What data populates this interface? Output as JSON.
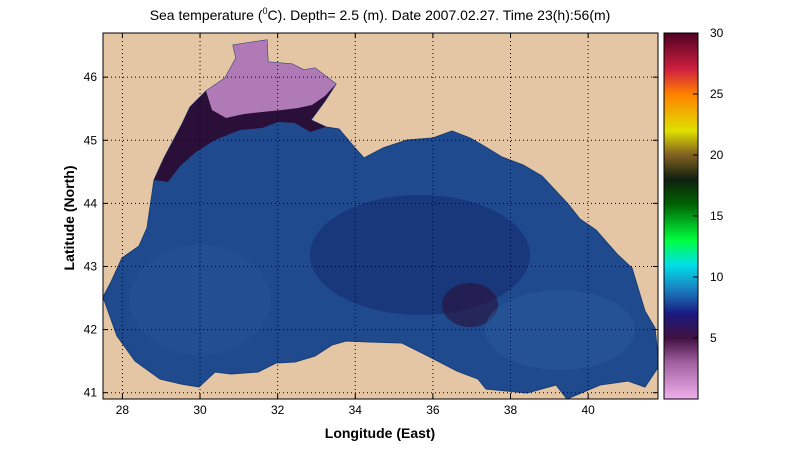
{
  "title": {
    "prefix": "Sea temperature (",
    "sup": "0",
    "suffix": "C). Depth=  2.5 (m). Date 2007.02.27. Time 23(h):56(m)"
  },
  "x_axis": {
    "label": "Longitude (East)",
    "range": [
      27.5,
      41.8
    ],
    "ticks": [
      28,
      30,
      32,
      34,
      36,
      38,
      40
    ]
  },
  "y_axis": {
    "label": "Latitude (North)",
    "range": [
      40.9,
      46.7
    ],
    "ticks": [
      41,
      42,
      43,
      44,
      45,
      46
    ]
  },
  "colorbar": {
    "range": [
      0,
      30
    ],
    "ticks": [
      5,
      10,
      15,
      20,
      25,
      30
    ],
    "stops": [
      {
        "v": 0,
        "c": "#f0b0ec"
      },
      {
        "v": 3,
        "c": "#a060a0"
      },
      {
        "v": 5,
        "c": "#401040"
      },
      {
        "v": 7,
        "c": "#1a1a80"
      },
      {
        "v": 9,
        "c": "#1a80c0"
      },
      {
        "v": 11,
        "c": "#00e0e8"
      },
      {
        "v": 13,
        "c": "#00ff40"
      },
      {
        "v": 16,
        "c": "#006000"
      },
      {
        "v": 18,
        "c": "#102010"
      },
      {
        "v": 20,
        "c": "#806020"
      },
      {
        "v": 22,
        "c": "#e0e000"
      },
      {
        "v": 25,
        "c": "#ff8000"
      },
      {
        "v": 27,
        "c": "#d02040"
      },
      {
        "v": 30,
        "c": "#500020"
      }
    ]
  },
  "colors": {
    "land": "#e4c6a4",
    "sea_base": "#1f4b8e",
    "sea_deep": "#142a6c",
    "shelf_cold": "#2a0f38",
    "ice_pink": "#b07ab6"
  }
}
